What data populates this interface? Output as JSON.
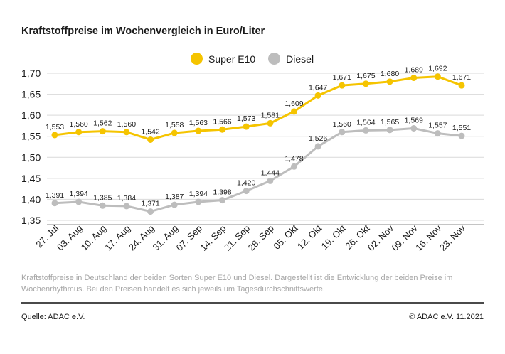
{
  "title": "Kraftstoffpreise im Wochenvergleich in Euro/Liter",
  "description": "Kraftstoffpreise in Deutschland der beiden Sorten Super E10 und Diesel. Dargestellt ist die Entwicklung der beiden Preise im Wochenrhythmus. Bei den Preisen handelt es sich jeweils um Tagesdurchschnittswerte.",
  "source": "Quelle: ADAC e.V.",
  "copyright": "© ADAC e.V. 11.2021",
  "colors": {
    "super": "#f5c400",
    "diesel": "#bdbdbd",
    "grid": "#d9d9d9",
    "axis": "#8a8a8a"
  },
  "chart_data": {
    "type": "line",
    "title": "Kraftstoffpreise im Wochenvergleich in Euro/Liter",
    "categories": [
      "27. Jul",
      "03. Aug",
      "10. Aug",
      "17. Aug",
      "24. Aug",
      "31. Aug",
      "07. Sep",
      "14. Sep",
      "21. Sep",
      "28. Sep",
      "05. Okt",
      "12. Okt",
      "19. Okt",
      "26. Okt",
      "02. Nov",
      "09. Nov",
      "16. Nov",
      "23. Nov"
    ],
    "yticks": [
      "1,35",
      "1,40",
      "1,45",
      "1,50",
      "1,55",
      "1,60",
      "1,65",
      "1,70"
    ],
    "ylim": [
      1.34,
      1.715
    ],
    "grid": true,
    "legend_position": "top-center",
    "series": [
      {
        "name": "Super E10",
        "color": "#f5c400",
        "values": [
          1.553,
          1.56,
          1.562,
          1.56,
          1.542,
          1.558,
          1.563,
          1.566,
          1.573,
          1.581,
          1.609,
          1.647,
          1.671,
          1.675,
          1.68,
          1.689,
          1.692,
          1.671
        ],
        "labels": [
          "1,553",
          "1,560",
          "1,562",
          "1,560",
          "1,542",
          "1,558",
          "1,563",
          "1,566",
          "1,573",
          "1,581",
          "1,609",
          "1,647",
          "1,671",
          "1,675",
          "1,680",
          "1,689",
          "1,692",
          "1,671"
        ]
      },
      {
        "name": "Diesel",
        "color": "#bdbdbd",
        "values": [
          1.391,
          1.394,
          1.385,
          1.384,
          1.371,
          1.387,
          1.394,
          1.398,
          1.42,
          1.444,
          1.478,
          1.526,
          1.56,
          1.564,
          1.565,
          1.569,
          1.557,
          1.551
        ],
        "labels": [
          "1,391",
          "1,394",
          "1,385",
          "1,384",
          "1,371",
          "1,387",
          "1,394",
          "1,398",
          "1,420",
          "1,444",
          "1,478",
          "1,526",
          "1,560",
          "1,564",
          "1,565",
          "1,569",
          "1,557",
          "1,551"
        ]
      }
    ]
  }
}
